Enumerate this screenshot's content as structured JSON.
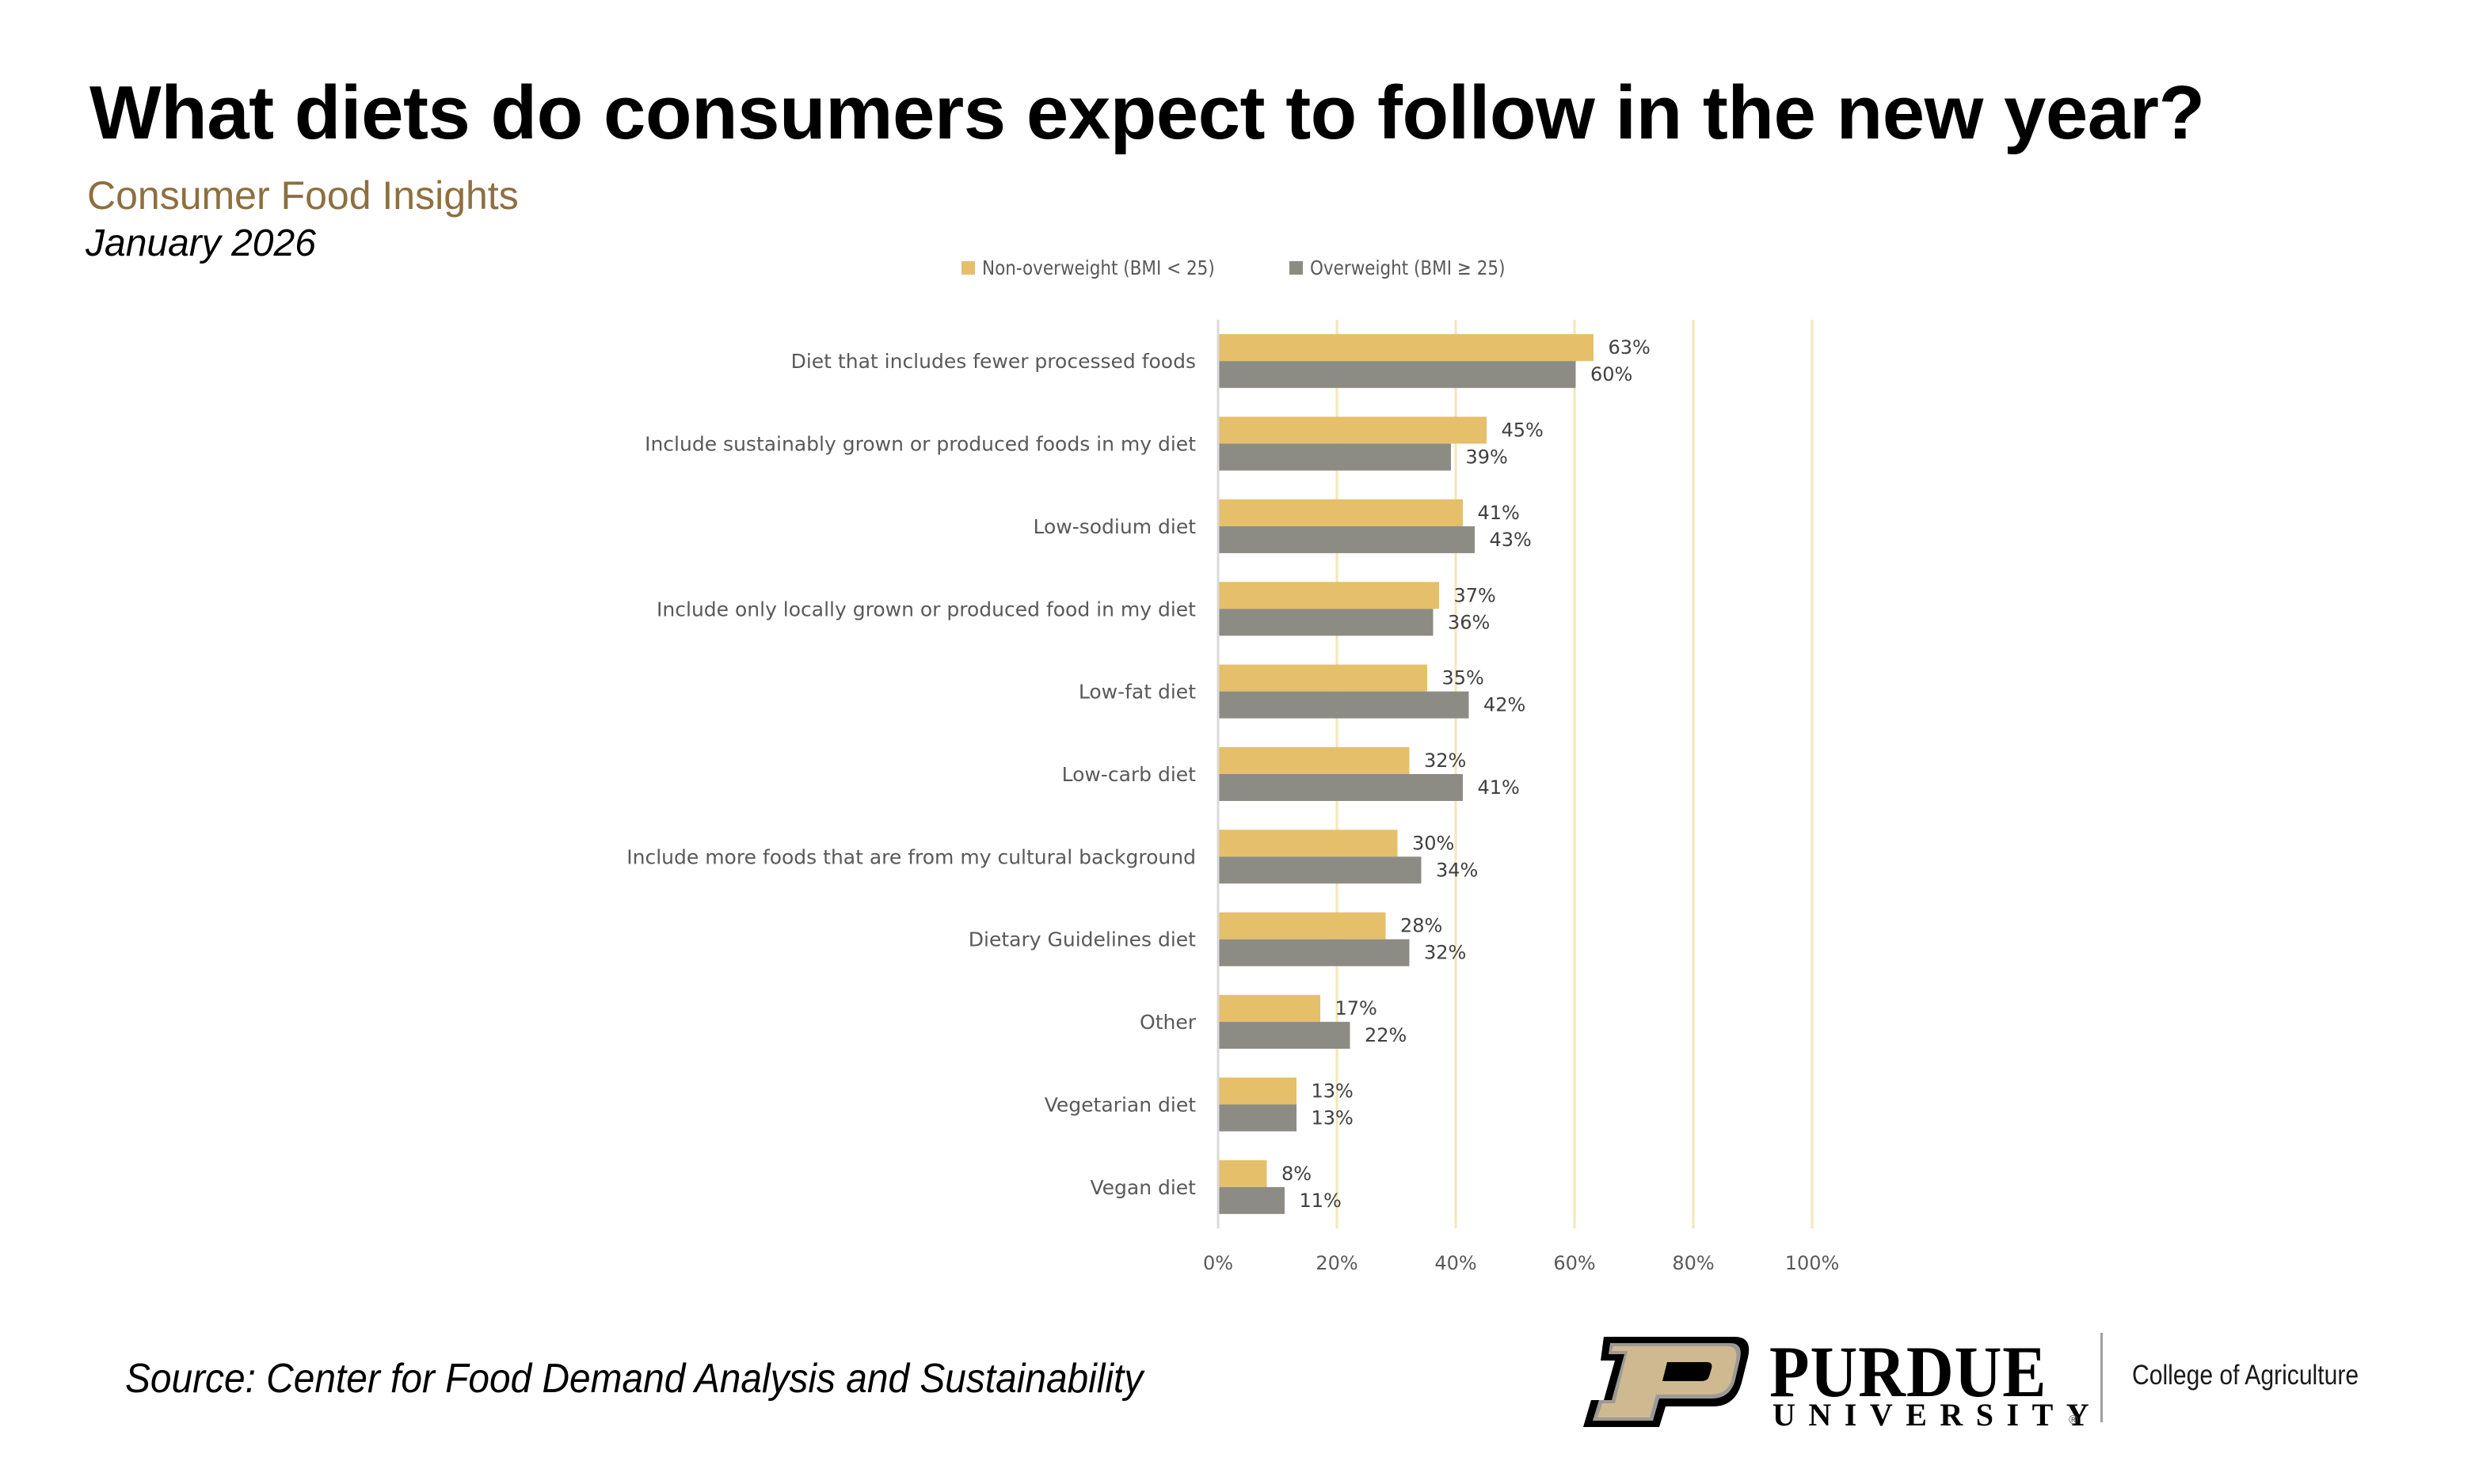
{
  "header": {
    "title": "What diets do consumers expect to follow in the new year?",
    "subtitle": "Consumer Food Insights",
    "date": "January 2026"
  },
  "footer": {
    "source": "Source:  Center for Food Demand Analysis and Sustainability",
    "logo": {
      "icon": "purdue-p-icon",
      "wordmark_top": "PURDUE",
      "wordmark_bottom": "UNIVERSITY",
      "registered": "®",
      "college": "College of Agriculture"
    }
  },
  "colors": {
    "subtitle": "#8e6f3e",
    "series_non_overweight": "#e5bf6a",
    "series_overweight": "#8c8c84",
    "gridline": "#f5e6b8",
    "axis": "#d9d9d9",
    "logo_gold": "#cfb991"
  },
  "chart_data": {
    "type": "bar",
    "orientation": "horizontal",
    "title": "What diets do consumers expect to follow in the new year?",
    "xlabel": "",
    "ylabel": "",
    "xlim": [
      0,
      100
    ],
    "x_ticks": [
      "0%",
      "20%",
      "40%",
      "60%",
      "80%",
      "100%"
    ],
    "grid": true,
    "legend_position": "top",
    "value_format": "percent",
    "categories": [
      "Diet that includes fewer processed foods",
      "Include sustainably grown or produced foods in my diet",
      "Low-sodium diet",
      "Include only locally grown or produced food in my diet",
      "Low-fat diet",
      "Low-carb diet",
      "Include more foods that are from my cultural background",
      "Dietary Guidelines diet",
      "Other",
      "Vegetarian diet",
      "Vegan diet"
    ],
    "series": [
      {
        "name": "Non-overweight (BMI < 25)",
        "color": "#e5bf6a",
        "values": [
          63,
          45,
          41,
          37,
          35,
          32,
          30,
          28,
          17,
          13,
          8
        ]
      },
      {
        "name": "Overweight (BMI ≥ 25)",
        "color": "#8c8c84",
        "values": [
          60,
          39,
          43,
          36,
          42,
          41,
          34,
          32,
          22,
          13,
          11
        ]
      }
    ]
  }
}
